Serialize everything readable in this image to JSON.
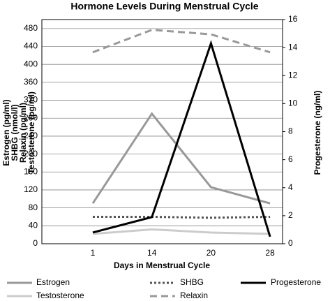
{
  "chart_data": {
    "type": "line",
    "title": "Hormone Levels During Menstrual Cycle",
    "x_label": "Days in Menstrual Cycle",
    "y_label": [
      "Estrogen (pg/ml)",
      "SHBG (nmol/l)",
      "Relaxin (pg/ml)",
      "Testosterone (pg/ml)"
    ],
    "y2_label": "Progesterone (ng/ml)",
    "categories": [
      "1",
      "14",
      "20",
      "28"
    ],
    "ylim": [
      0,
      500
    ],
    "yticks": [
      0,
      40,
      80,
      120,
      160,
      200,
      240,
      280,
      320,
      360,
      400,
      440,
      480
    ],
    "y2lim": [
      0,
      16
    ],
    "y2ticks": [
      0,
      2,
      4,
      6,
      8,
      10,
      12,
      14,
      16
    ],
    "grid": true,
    "series": [
      {
        "name": "Estrogen",
        "color": "#999999",
        "dash": "solid",
        "values": [
          90,
          290,
          126,
          90
        ]
      },
      {
        "name": "SHBG",
        "color": "#555555",
        "dash": "dotted",
        "values": [
          60,
          60,
          58,
          60
        ]
      },
      {
        "name": "Progesterone",
        "color": "#000000",
        "dash": "solid",
        "axis": "y2",
        "values": [
          0.8,
          1.9,
          14.3,
          0.5
        ]
      },
      {
        "name": "Testosterone",
        "color": "#cccccc",
        "dash": "solid",
        "values": [
          22,
          32,
          25,
          22
        ]
      },
      {
        "name": "Relaxin",
        "color": "#999999",
        "dash": "dashed",
        "values": [
          427,
          477,
          467,
          427
        ]
      }
    ]
  }
}
